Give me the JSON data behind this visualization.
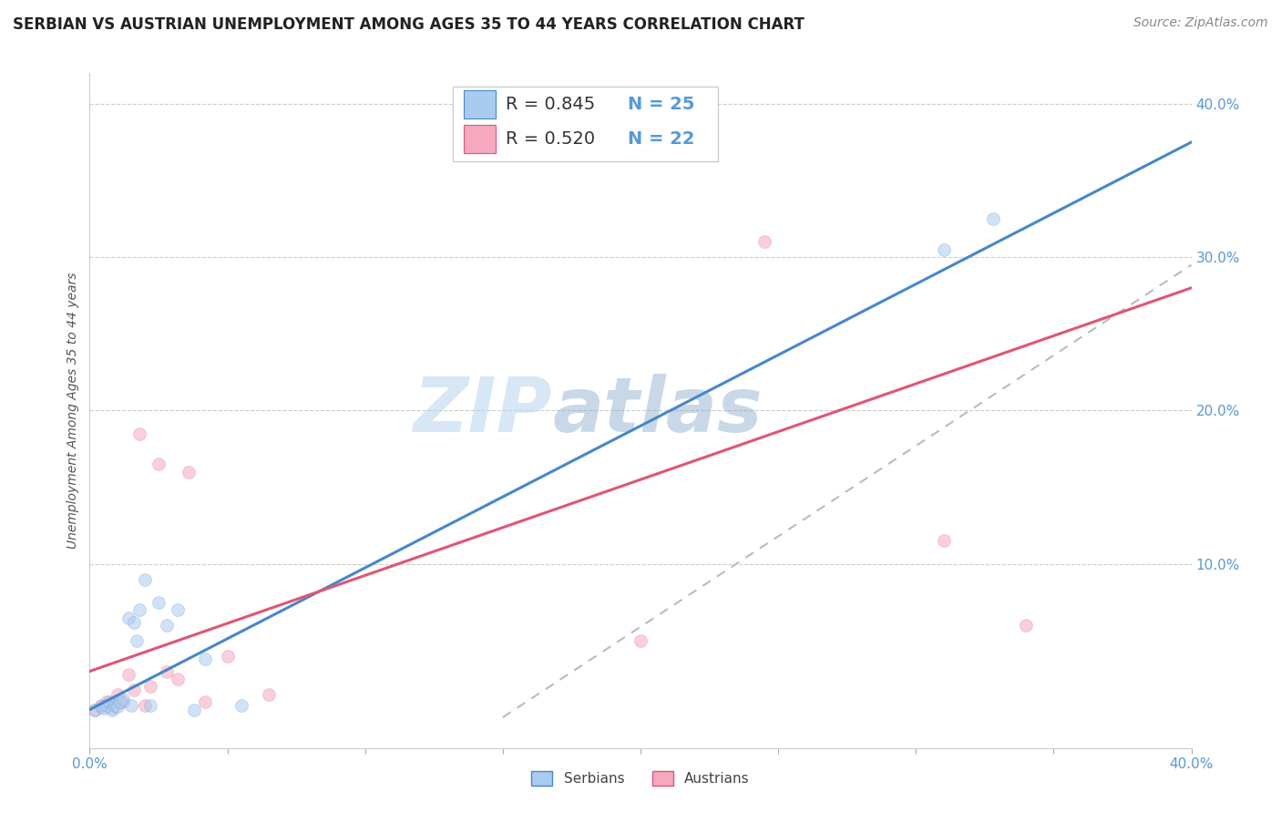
{
  "title": "SERBIAN VS AUSTRIAN UNEMPLOYMENT AMONG AGES 35 TO 44 YEARS CORRELATION CHART",
  "source": "Source: ZipAtlas.com",
  "ylabel": "Unemployment Among Ages 35 to 44 years",
  "xlim": [
    0.0,
    0.4
  ],
  "ylim": [
    -0.02,
    0.42
  ],
  "watermark_zip": "ZIP",
  "watermark_atlas": "atlas",
  "serbian_color": "#aacbf0",
  "austrian_color": "#f5a8c0",
  "serbian_line_color": "#4488cc",
  "austrian_line_color": "#e05575",
  "legend_serbian_r": "R = 0.845",
  "legend_serbian_n": "N = 25",
  "legend_austrian_r": "R = 0.520",
  "legend_austrian_n": "N = 22",
  "serbian_x": [
    0.002,
    0.004,
    0.005,
    0.006,
    0.007,
    0.008,
    0.009,
    0.01,
    0.011,
    0.012,
    0.014,
    0.015,
    0.016,
    0.017,
    0.018,
    0.02,
    0.022,
    0.025,
    0.028,
    0.032,
    0.038,
    0.042,
    0.055,
    0.31,
    0.328
  ],
  "serbian_y": [
    0.005,
    0.007,
    0.006,
    0.008,
    0.01,
    0.005,
    0.008,
    0.007,
    0.01,
    0.012,
    0.065,
    0.008,
    0.062,
    0.05,
    0.07,
    0.09,
    0.008,
    0.075,
    0.06,
    0.07,
    0.005,
    0.038,
    0.008,
    0.305,
    0.325
  ],
  "austrian_x": [
    0.002,
    0.004,
    0.006,
    0.008,
    0.01,
    0.012,
    0.014,
    0.016,
    0.018,
    0.02,
    0.022,
    0.025,
    0.028,
    0.032,
    0.036,
    0.042,
    0.05,
    0.065,
    0.2,
    0.245,
    0.31,
    0.34
  ],
  "austrian_y": [
    0.005,
    0.008,
    0.01,
    0.006,
    0.015,
    0.01,
    0.028,
    0.018,
    0.185,
    0.008,
    0.02,
    0.165,
    0.03,
    0.025,
    0.16,
    0.01,
    0.04,
    0.015,
    0.05,
    0.31,
    0.115,
    0.06
  ],
  "serbian_line_x0": 0.0,
  "serbian_line_y0": 0.005,
  "serbian_line_x1": 0.4,
  "serbian_line_y1": 0.375,
  "austrian_line_x0": 0.0,
  "austrian_line_y0": 0.03,
  "austrian_line_x1": 0.4,
  "austrian_line_y1": 0.28,
  "dashed_line_x0": 0.15,
  "dashed_line_y0": 0.0,
  "dashed_line_x1": 0.4,
  "dashed_line_y1": 0.295,
  "background_color": "#ffffff",
  "grid_color": "#cccccc",
  "title_fontsize": 12,
  "axis_label_fontsize": 10,
  "tick_fontsize": 11,
  "legend_fontsize": 14,
  "source_fontsize": 10,
  "marker_size": 100,
  "marker_alpha": 0.55,
  "line_width": 2.2
}
